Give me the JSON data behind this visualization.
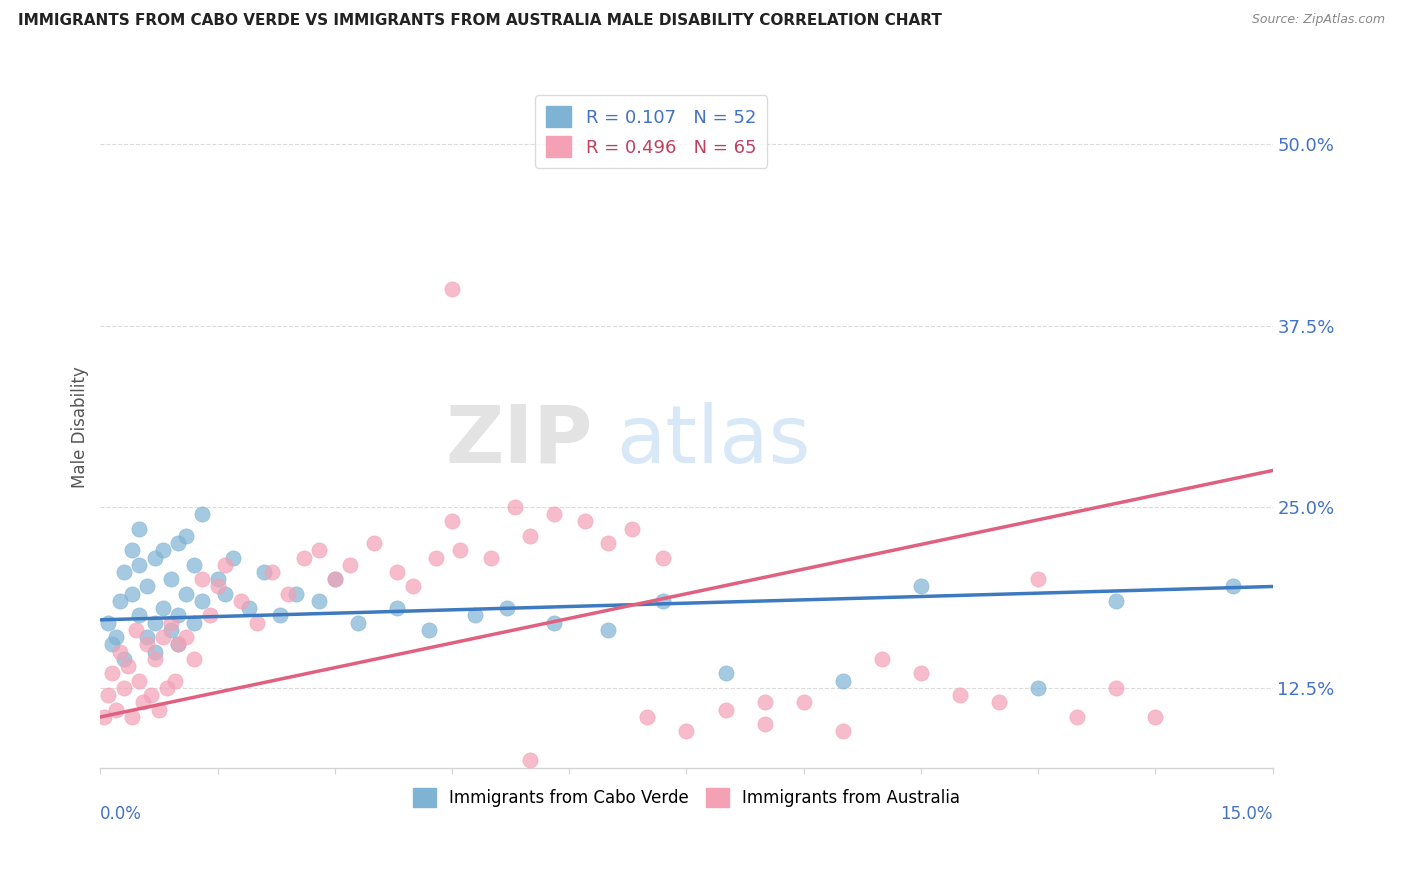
{
  "title": "IMMIGRANTS FROM CABO VERDE VS IMMIGRANTS FROM AUSTRALIA MALE DISABILITY CORRELATION CHART",
  "source": "Source: ZipAtlas.com",
  "ylabel": "Male Disability",
  "y_ticks": [
    12.5,
    25.0,
    37.5,
    50.0
  ],
  "y_tick_labels": [
    "12.5%",
    "25.0%",
    "37.5%",
    "50.0%"
  ],
  "xlim": [
    0.0,
    15.0
  ],
  "ylim": [
    7.0,
    54.0
  ],
  "color_blue": "#7fb3d3",
  "color_pink": "#f4a0b5",
  "color_blue_line": "#3d7abf",
  "color_pink_line": "#e06080",
  "cabo_verde_x": [
    0.1,
    0.15,
    0.2,
    0.25,
    0.3,
    0.3,
    0.4,
    0.4,
    0.5,
    0.5,
    0.5,
    0.6,
    0.6,
    0.7,
    0.7,
    0.7,
    0.8,
    0.8,
    0.9,
    0.9,
    1.0,
    1.0,
    1.0,
    1.1,
    1.1,
    1.2,
    1.2,
    1.3,
    1.3,
    1.5,
    1.6,
    1.7,
    1.9,
    2.1,
    2.3,
    2.5,
    2.8,
    3.0,
    3.3,
    3.8,
    4.2,
    4.8,
    5.2,
    5.8,
    6.5,
    7.2,
    8.0,
    9.5,
    10.5,
    12.0,
    13.0,
    14.5
  ],
  "cabo_verde_y": [
    17.0,
    15.5,
    16.0,
    18.5,
    14.5,
    20.5,
    22.0,
    19.0,
    17.5,
    21.0,
    23.5,
    16.0,
    19.5,
    15.0,
    17.0,
    21.5,
    18.0,
    22.0,
    16.5,
    20.0,
    15.5,
    17.5,
    22.5,
    19.0,
    23.0,
    17.0,
    21.0,
    18.5,
    24.5,
    20.0,
    19.0,
    21.5,
    18.0,
    20.5,
    17.5,
    19.0,
    18.5,
    20.0,
    17.0,
    18.0,
    16.5,
    17.5,
    18.0,
    17.0,
    16.5,
    18.5,
    13.5,
    13.0,
    19.5,
    12.5,
    18.5,
    19.5
  ],
  "australia_x": [
    0.05,
    0.1,
    0.15,
    0.2,
    0.25,
    0.3,
    0.35,
    0.4,
    0.45,
    0.5,
    0.55,
    0.6,
    0.65,
    0.7,
    0.75,
    0.8,
    0.85,
    0.9,
    0.95,
    1.0,
    1.1,
    1.2,
    1.3,
    1.4,
    1.5,
    1.6,
    1.8,
    2.0,
    2.2,
    2.4,
    2.6,
    2.8,
    3.0,
    3.2,
    3.5,
    3.8,
    4.0,
    4.3,
    4.6,
    5.0,
    5.3,
    5.5,
    5.8,
    6.2,
    6.5,
    6.8,
    7.0,
    7.5,
    8.0,
    8.5,
    9.0,
    9.5,
    10.0,
    10.5,
    11.0,
    11.5,
    12.0,
    12.5,
    13.0,
    13.5,
    4.5,
    4.5,
    5.5,
    7.2,
    8.5
  ],
  "australia_y": [
    10.5,
    12.0,
    13.5,
    11.0,
    15.0,
    12.5,
    14.0,
    10.5,
    16.5,
    13.0,
    11.5,
    15.5,
    12.0,
    14.5,
    11.0,
    16.0,
    12.5,
    17.0,
    13.0,
    15.5,
    16.0,
    14.5,
    20.0,
    17.5,
    19.5,
    21.0,
    18.5,
    17.0,
    20.5,
    19.0,
    21.5,
    22.0,
    20.0,
    21.0,
    22.5,
    20.5,
    19.5,
    21.5,
    22.0,
    21.5,
    25.0,
    23.0,
    24.5,
    24.0,
    22.5,
    23.5,
    10.5,
    9.5,
    11.0,
    10.0,
    11.5,
    9.5,
    14.5,
    13.5,
    12.0,
    11.5,
    20.0,
    10.5,
    12.5,
    10.5,
    40.0,
    24.0,
    7.5,
    21.5,
    11.5
  ],
  "cv_trend_x": [
    0,
    15
  ],
  "cv_trend_y": [
    17.2,
    19.5
  ],
  "au_trend_x": [
    0,
    15
  ],
  "au_trend_y": [
    10.5,
    27.5
  ]
}
